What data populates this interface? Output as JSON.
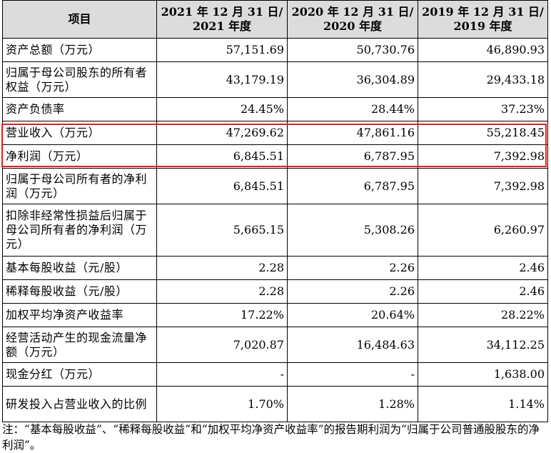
{
  "table": {
    "headers": [
      "项目",
      "2021 年 12 月 31 日/\n2021 年度",
      "2020 年 12 月 31 日/\n2020 年度",
      "2019 年 12 月 31 日/\n2019 年度"
    ],
    "header_lines": [
      [
        "项目"
      ],
      [
        "2021 年 12 月 31 日/",
        "2021 年度"
      ],
      [
        "2020 年 12 月 31 日/",
        "2020 年度"
      ],
      [
        "2019 年 12 月 31 日/",
        "2019 年度"
      ]
    ],
    "rows": [
      {
        "label": "资产总额（万元）",
        "values": [
          "57,151.69",
          "50,730.76",
          "46,890.93"
        ],
        "lines": 1
      },
      {
        "label": "归属于母公司股东的所有者权益（万元）",
        "values": [
          "43,179.19",
          "36,304.89",
          "29,433.18"
        ],
        "lines": 2
      },
      {
        "label": "资产负债率",
        "values": [
          "24.45%",
          "28.44%",
          "37.23%"
        ],
        "lines": 1
      },
      {
        "label": "营业收入（万元）",
        "values": [
          "47,269.62",
          "47,861.16",
          "55,218.45"
        ],
        "lines": 1,
        "highlighted": true
      },
      {
        "label": "净利润（万元）",
        "values": [
          "6,845.51",
          "6,787.95",
          "7,392.98"
        ],
        "lines": 1,
        "highlighted": true
      },
      {
        "label": "归属于母公司所有者的净利润（万元）",
        "values": [
          "6,845.51",
          "6,787.95",
          "7,392.98"
        ],
        "lines": 2
      },
      {
        "label": "扣除非经常性损益后归属于母公司所有者的净利润（万元）",
        "values": [
          "5,665.15",
          "5,308.26",
          "6,260.97"
        ],
        "lines": 3
      },
      {
        "label": "基本每股收益（元/股）",
        "values": [
          "2.28",
          "2.26",
          "2.46"
        ],
        "lines": 1
      },
      {
        "label": "稀释每股收益（元/股）",
        "values": [
          "2.28",
          "2.26",
          "2.46"
        ],
        "lines": 1
      },
      {
        "label": "加权平均净资产收益率",
        "values": [
          "17.22%",
          "20.64%",
          "28.22%"
        ],
        "lines": 1
      },
      {
        "label": "经营活动产生的现金流量净额（万元）",
        "values": [
          "7,020.87",
          "16,484.63",
          "34,112.25"
        ],
        "lines": 2
      },
      {
        "label": "现金分红（万元）",
        "values": [
          "-",
          "-",
          "1,638.00"
        ],
        "lines": 1
      },
      {
        "label": "研发投入占营业收入的比例",
        "values": [
          "1.70%",
          "1.28%",
          "1.14%"
        ],
        "lines": 2
      }
    ]
  },
  "note": "注：“基本每股收益”、“稀释每股收益”和“加权平均净资产收益率”的报告期利润为“归属于公司普通股股东的净利润”。",
  "colors": {
    "header_bg": "#dcdcdc",
    "highlight_border": "#e02020",
    "border": "#000000"
  }
}
